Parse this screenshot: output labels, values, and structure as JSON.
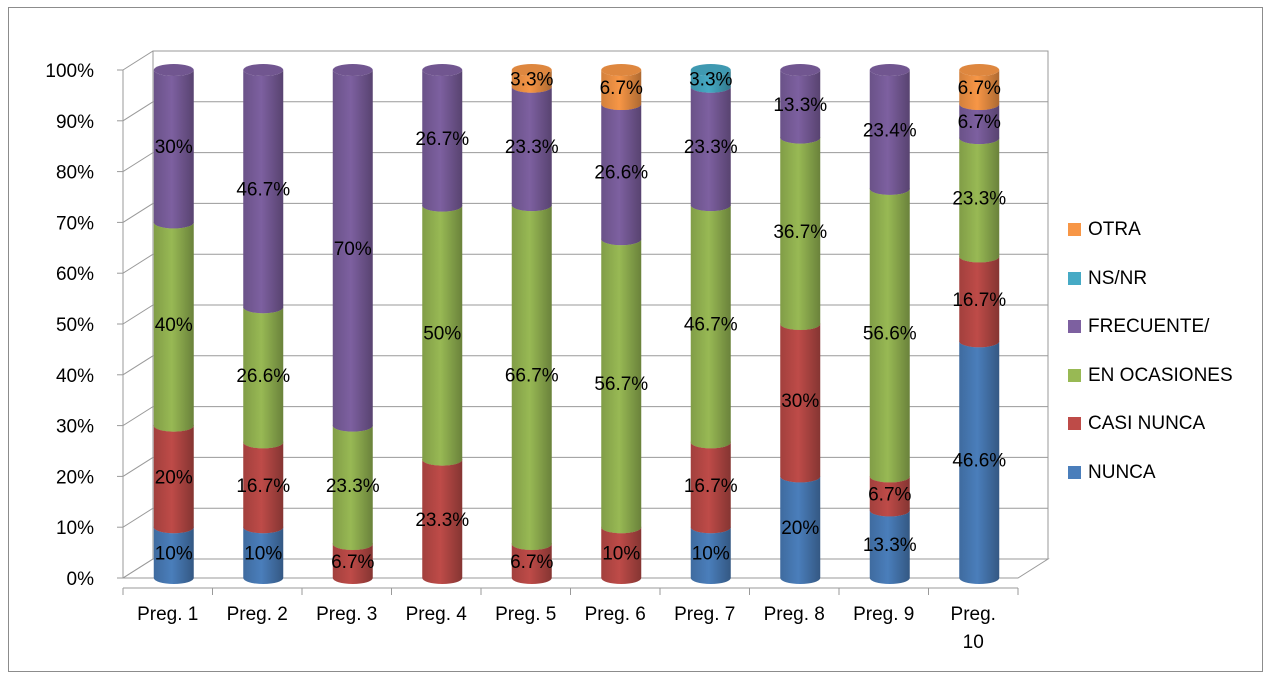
{
  "chart_data": {
    "type": "bar",
    "stacked": true,
    "percent_stacked": true,
    "style": "3d-cylinder",
    "categories": [
      "Preg. 1",
      "Preg. 2",
      "Preg. 3",
      "Preg. 4",
      "Preg. 5",
      "Preg. 6",
      "Preg. 7",
      "Preg. 8",
      "Preg. 9",
      "Preg. 10"
    ],
    "ylim": [
      0,
      100
    ],
    "yticks": [
      "0%",
      "10%",
      "20%",
      "30%",
      "40%",
      "50%",
      "60%",
      "70%",
      "80%",
      "90%",
      "100%"
    ],
    "grid": true,
    "legend_position": "right",
    "series": [
      {
        "name": "NUNCA",
        "color": "#4a7ebb",
        "values": [
          10,
          10,
          0,
          0,
          0,
          0,
          10,
          20,
          13.3,
          46.6
        ],
        "labels": [
          "10%",
          "10%",
          "",
          "",
          "",
          "",
          "10%",
          "20%",
          "13.3%",
          "46.6%"
        ]
      },
      {
        "name": "CASI NUNCA",
        "color": "#be4b48",
        "values": [
          20,
          16.7,
          6.7,
          23.3,
          6.7,
          10,
          16.7,
          30,
          6.7,
          16.7
        ],
        "labels": [
          "20%",
          "16.7%",
          "6.7%",
          "23.3%",
          "6.7%",
          "10%",
          "16.7%",
          "30%",
          "6.7%",
          "16.7%"
        ]
      },
      {
        "name": "EN OCASIONES",
        "color": "#98b954",
        "values": [
          40,
          26.6,
          23.3,
          50,
          66.7,
          56.7,
          46.7,
          36.7,
          56.6,
          23.3
        ],
        "labels": [
          "40%",
          "26.6%",
          "23.3%",
          "50%",
          "66.7%",
          "56.7%",
          "46.7%",
          "36.7%",
          "56.6%",
          "23.3%"
        ]
      },
      {
        "name": "FRECUENTE/",
        "color": "#7d60a0",
        "values": [
          30,
          46.7,
          70,
          26.7,
          23.3,
          26.6,
          23.3,
          13.3,
          23.4,
          6.7
        ],
        "labels": [
          "30%",
          "46.7%",
          "70%",
          "26.7%",
          "23.3%",
          "26.6%",
          "23.3%",
          "13.3%",
          "23.4%",
          "6.7%"
        ]
      },
      {
        "name": "NS/NR",
        "color": "#46aac5",
        "values": [
          0,
          0,
          0,
          0,
          0,
          0,
          3.3,
          0,
          0,
          0
        ],
        "labels": [
          "",
          "",
          "",
          "",
          "",
          "",
          "3.3%",
          "",
          "",
          ""
        ]
      },
      {
        "name": "OTRA",
        "color": "#f79646",
        "values": [
          0,
          0,
          0,
          0,
          3.3,
          6.7,
          0,
          0,
          0,
          6.7
        ],
        "labels": [
          "",
          "",
          "",
          "",
          "3.3%",
          "6.7%",
          "",
          "",
          "",
          "6.7%"
        ]
      }
    ]
  }
}
